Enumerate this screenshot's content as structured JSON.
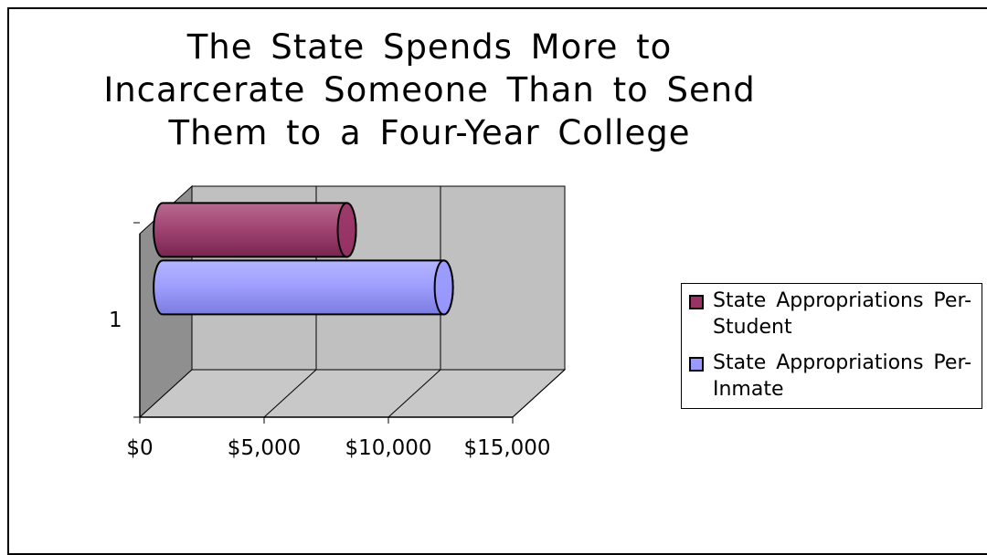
{
  "chart_data": {
    "type": "bar",
    "orientation": "horizontal",
    "style": "3d-cylinder",
    "title": "The State Spends More to Incarcerate Someone Than to Send Them to a Four-Year College",
    "categories": [
      "1"
    ],
    "series": [
      {
        "name": "State Appropriations Per-Student",
        "values": [
          7700
        ],
        "color": "#993366"
      },
      {
        "name": "State Appropriations Per-Inmate",
        "values": [
          11600
        ],
        "color": "#9999ff"
      }
    ],
    "xlim": [
      0,
      15000
    ],
    "xticks": [
      "$0",
      "$5,000",
      "$10,000",
      "$15,000"
    ],
    "grid": true,
    "legend_position": "right",
    "wall_color": "#c0c0c0"
  }
}
